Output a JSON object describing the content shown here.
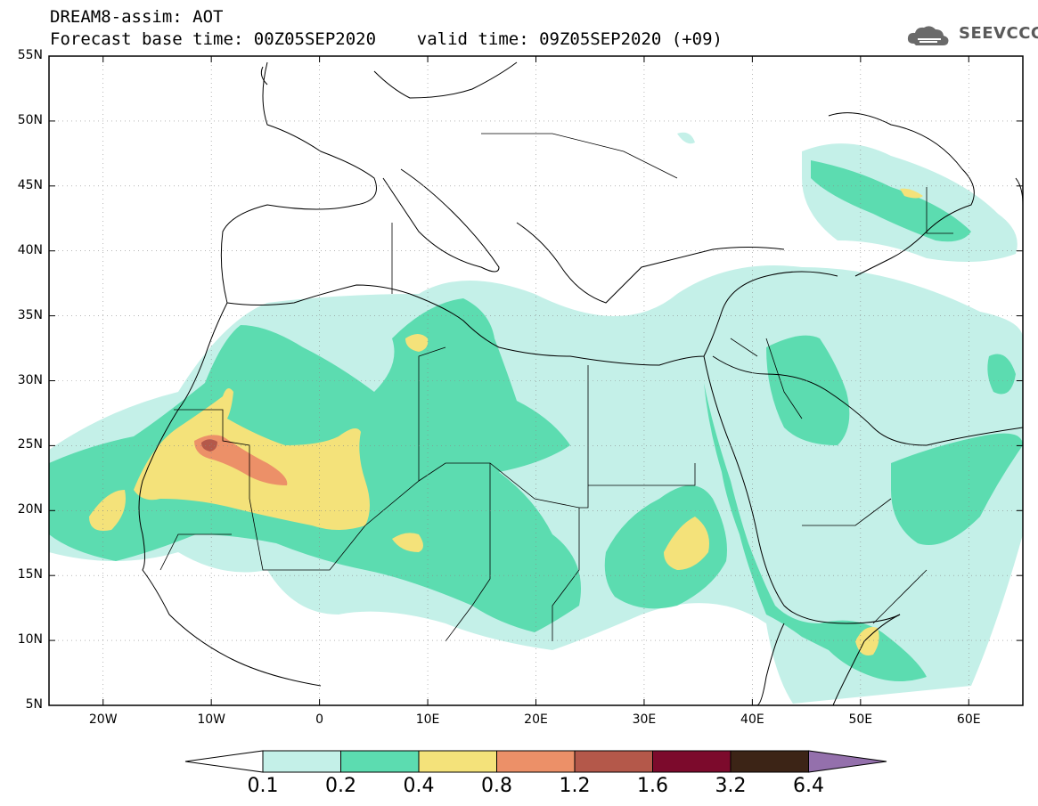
{
  "title": {
    "line1": "DREAM8-assim: AOT",
    "line2": "Forecast base time: 00Z05SEP2020    valid time: 09Z05SEP2020 (+09)"
  },
  "logo": {
    "text": "SEEVCCC",
    "icon": "cloud-logo-icon"
  },
  "map": {
    "projection": "equirectangular",
    "lon_range": [
      -25,
      65
    ],
    "lat_range": [
      5,
      55
    ],
    "lat_ticks": [
      {
        "value": 55,
        "label": "55N"
      },
      {
        "value": 50,
        "label": "50N"
      },
      {
        "value": 45,
        "label": "45N"
      },
      {
        "value": 40,
        "label": "40N"
      },
      {
        "value": 35,
        "label": "35N"
      },
      {
        "value": 30,
        "label": "30N"
      },
      {
        "value": 25,
        "label": "25N"
      },
      {
        "value": 20,
        "label": "20N"
      },
      {
        "value": 15,
        "label": "15N"
      },
      {
        "value": 10,
        "label": "10N"
      },
      {
        "value": 5,
        "label": "5N"
      }
    ],
    "lon_ticks": [
      {
        "value": -20,
        "label": "20W"
      },
      {
        "value": -10,
        "label": "10W"
      },
      {
        "value": 0,
        "label": "0"
      },
      {
        "value": 10,
        "label": "10E"
      },
      {
        "value": 20,
        "label": "20E"
      },
      {
        "value": 30,
        "label": "30E"
      },
      {
        "value": 40,
        "label": "40E"
      },
      {
        "value": 50,
        "label": "50E"
      },
      {
        "value": 60,
        "label": "60E"
      }
    ],
    "grid": "dotted"
  },
  "colorbar": {
    "labels": [
      "0.1",
      "0.2",
      "0.4",
      "0.8",
      "1.2",
      "1.6",
      "3.2",
      "6.4"
    ],
    "colors": [
      "#c4f0e8",
      "#5cdcb0",
      "#f4e27a",
      "#ec9068",
      "#b4584a",
      "#7c0a2c",
      "#3c2416",
      "#9470ac"
    ]
  }
}
